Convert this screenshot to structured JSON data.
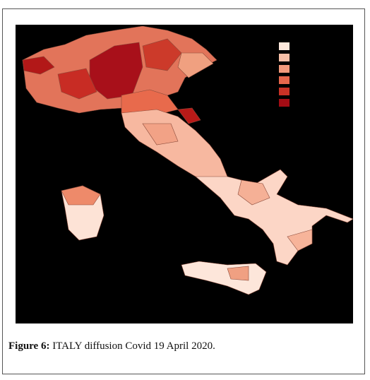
{
  "figure": {
    "label": "Figure 6:",
    "caption": "ITALY diffusion Covid 19 April 2020."
  }
}
